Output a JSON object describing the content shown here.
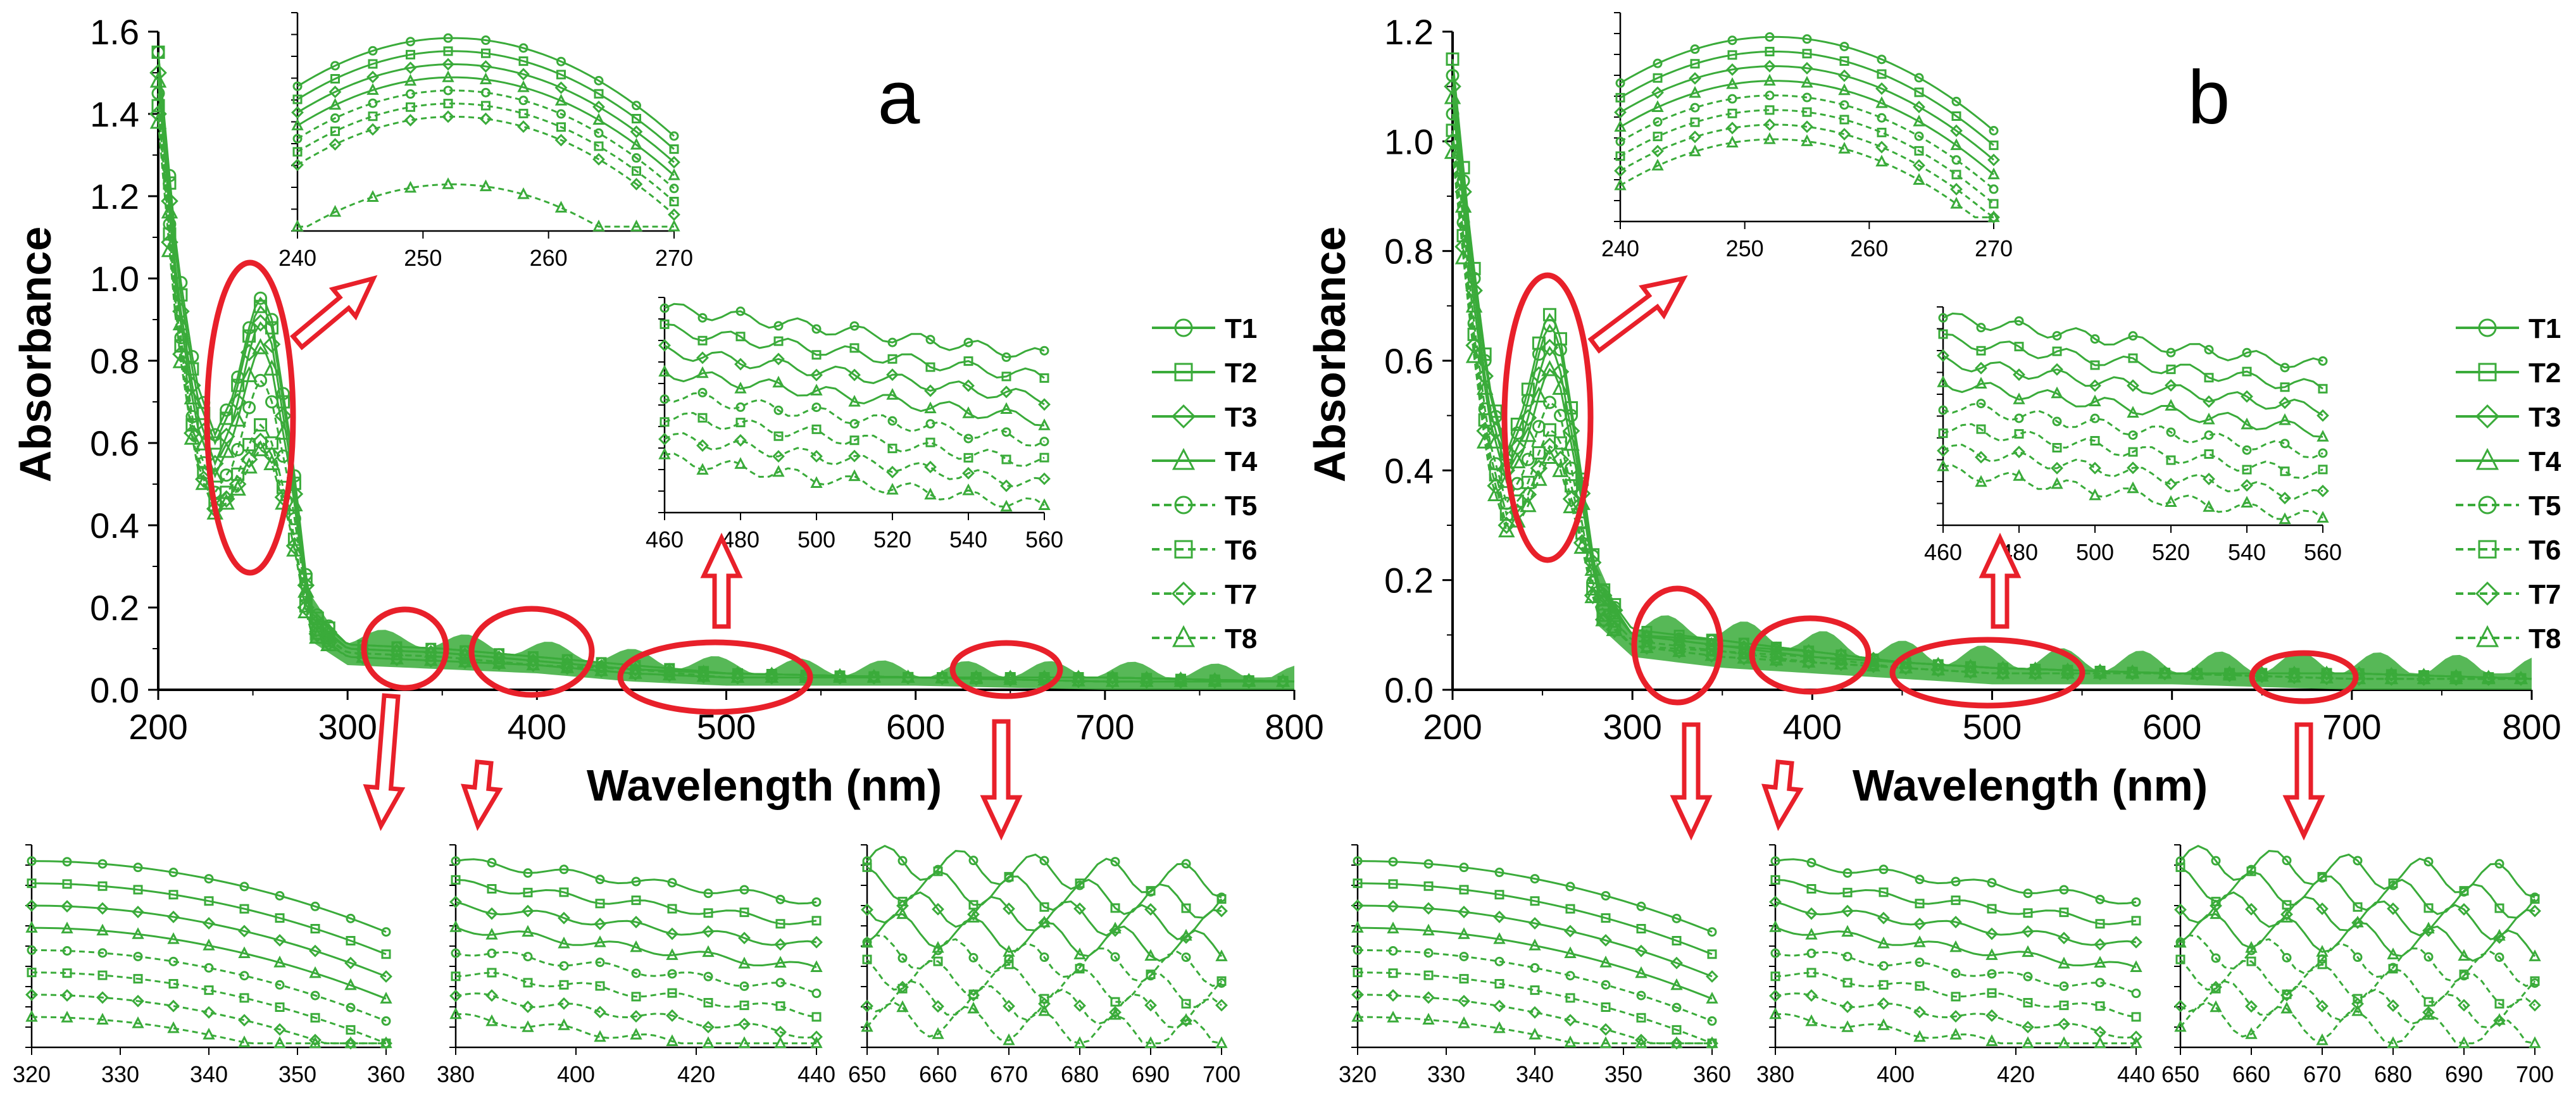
{
  "colors": {
    "series": "#3aab3a",
    "highlight": "#e8202a",
    "axis": "#000000"
  },
  "panels": [
    {
      "label": "a",
      "xlabel": "Wavelength (nm)",
      "ylabel": "Absorbance",
      "xticks": [
        "200",
        "300",
        "400",
        "500",
        "600",
        "700",
        "800"
      ],
      "yticks": [
        "0.0",
        "0.2",
        "0.4",
        "0.6",
        "0.8",
        "1.0",
        "1.2",
        "1.4",
        "1.6"
      ],
      "insets": {
        "uv": {
          "xticks": [
            "240",
            "250",
            "260",
            "270"
          ]
        },
        "vis": {
          "xticks": [
            "460",
            "480",
            "500",
            "520",
            "540",
            "560"
          ]
        },
        "b1": {
          "xticks": [
            "320",
            "330",
            "340",
            "350",
            "360"
          ]
        },
        "b2": {
          "xticks": [
            "380",
            "400",
            "420",
            "440"
          ]
        },
        "b3": {
          "xticks": [
            "650",
            "660",
            "670",
            "680",
            "690",
            "700"
          ]
        }
      }
    },
    {
      "label": "b",
      "xlabel": "Wavelength (nm)",
      "ylabel": "Absorbance",
      "xticks": [
        "200",
        "300",
        "400",
        "500",
        "600",
        "700",
        "800"
      ],
      "yticks": [
        "0.0",
        "0.2",
        "0.4",
        "0.6",
        "0.8",
        "1.0",
        "1.2"
      ],
      "insets": {
        "uv": {
          "xticks": [
            "240",
            "250",
            "260",
            "270"
          ]
        },
        "vis": {
          "xticks": [
            "460",
            "480",
            "500",
            "520",
            "540",
            "560"
          ]
        },
        "b1": {
          "xticks": [
            "320",
            "330",
            "340",
            "350",
            "360"
          ]
        },
        "b2": {
          "xticks": [
            "380",
            "400",
            "420",
            "440"
          ]
        },
        "b3": {
          "xticks": [
            "650",
            "660",
            "670",
            "680",
            "690",
            "700"
          ]
        }
      }
    }
  ],
  "legend": [
    "T1",
    "T2",
    "T3",
    "T4",
    "T5",
    "T6",
    "T7",
    "T8"
  ],
  "chart_data": [
    {
      "type": "line",
      "title": "a",
      "xlabel": "Wavelength (nm)",
      "ylabel": "Absorbance",
      "xlim": [
        200,
        800
      ],
      "ylim": [
        0,
        1.6
      ],
      "x": [
        200,
        210,
        220,
        230,
        240,
        250,
        255,
        260,
        270,
        280,
        300,
        350,
        400,
        450,
        500,
        600,
        700,
        800
      ],
      "series": [
        {
          "name": "T1",
          "style": "solid",
          "marker": "circle",
          "values": [
            1.55,
            1.05,
            0.75,
            0.62,
            0.72,
            0.92,
            0.96,
            0.9,
            0.6,
            0.2,
            0.11,
            0.1,
            0.08,
            0.06,
            0.04,
            0.03,
            0.03,
            0.02
          ]
        },
        {
          "name": "T2",
          "style": "solid",
          "marker": "square",
          "values": [
            1.55,
            1.02,
            0.72,
            0.6,
            0.7,
            0.9,
            0.94,
            0.88,
            0.58,
            0.19,
            0.11,
            0.1,
            0.08,
            0.06,
            0.04,
            0.03,
            0.03,
            0.02
          ]
        },
        {
          "name": "T3",
          "style": "solid",
          "marker": "diamond",
          "values": [
            1.5,
            0.98,
            0.68,
            0.55,
            0.66,
            0.86,
            0.9,
            0.84,
            0.55,
            0.18,
            0.1,
            0.09,
            0.07,
            0.05,
            0.04,
            0.03,
            0.03,
            0.02
          ]
        },
        {
          "name": "T4",
          "style": "solid",
          "marker": "triangle",
          "values": [
            1.48,
            0.95,
            0.65,
            0.52,
            0.62,
            0.8,
            0.84,
            0.78,
            0.52,
            0.17,
            0.1,
            0.09,
            0.07,
            0.05,
            0.04,
            0.03,
            0.03,
            0.02
          ]
        },
        {
          "name": "T5",
          "style": "dashed",
          "marker": "circle",
          "values": [
            1.45,
            0.92,
            0.6,
            0.48,
            0.55,
            0.72,
            0.76,
            0.7,
            0.48,
            0.16,
            0.09,
            0.08,
            0.06,
            0.05,
            0.03,
            0.03,
            0.02,
            0.02
          ]
        },
        {
          "name": "T6",
          "style": "dashed",
          "marker": "square",
          "values": [
            1.42,
            0.9,
            0.58,
            0.45,
            0.5,
            0.62,
            0.65,
            0.6,
            0.42,
            0.15,
            0.09,
            0.08,
            0.06,
            0.04,
            0.03,
            0.03,
            0.02,
            0.02
          ]
        },
        {
          "name": "T7",
          "style": "dashed",
          "marker": "diamond",
          "values": [
            1.4,
            0.88,
            0.56,
            0.44,
            0.48,
            0.58,
            0.61,
            0.57,
            0.4,
            0.15,
            0.08,
            0.07,
            0.06,
            0.04,
            0.03,
            0.03,
            0.02,
            0.02
          ]
        },
        {
          "name": "T8",
          "style": "dashed",
          "marker": "triangle",
          "values": [
            1.38,
            0.86,
            0.55,
            0.43,
            0.47,
            0.56,
            0.59,
            0.55,
            0.39,
            0.14,
            0.08,
            0.07,
            0.06,
            0.04,
            0.03,
            0.03,
            0.02,
            0.02
          ]
        }
      ],
      "annotations": [
        "zoom insets: 240–270 nm, 460–560 nm, 320–360 nm, 380–450 nm, 650–700 nm"
      ]
    },
    {
      "type": "line",
      "title": "b",
      "xlabel": "Wavelength (nm)",
      "ylabel": "Absorbance",
      "xlim": [
        200,
        800
      ],
      "ylim": [
        0,
        1.2
      ],
      "x": [
        200,
        210,
        220,
        230,
        240,
        250,
        255,
        260,
        270,
        280,
        300,
        350,
        400,
        450,
        500,
        600,
        700,
        800
      ],
      "series": [
        {
          "name": "T1",
          "style": "solid",
          "marker": "circle",
          "values": [
            1.12,
            0.8,
            0.55,
            0.42,
            0.5,
            0.64,
            0.67,
            0.62,
            0.42,
            0.2,
            0.1,
            0.09,
            0.07,
            0.05,
            0.04,
            0.03,
            0.03,
            0.02
          ]
        },
        {
          "name": "T2",
          "style": "solid",
          "marker": "square",
          "values": [
            1.15,
            0.82,
            0.56,
            0.43,
            0.52,
            0.66,
            0.69,
            0.64,
            0.43,
            0.2,
            0.11,
            0.09,
            0.07,
            0.05,
            0.04,
            0.03,
            0.03,
            0.02
          ]
        },
        {
          "name": "T3",
          "style": "solid",
          "marker": "diamond",
          "values": [
            1.1,
            0.78,
            0.52,
            0.4,
            0.47,
            0.6,
            0.63,
            0.58,
            0.4,
            0.19,
            0.1,
            0.08,
            0.07,
            0.05,
            0.04,
            0.03,
            0.03,
            0.02
          ]
        },
        {
          "name": "T4",
          "style": "solid",
          "marker": "triangle",
          "values": [
            1.08,
            0.75,
            0.5,
            0.38,
            0.44,
            0.56,
            0.59,
            0.55,
            0.38,
            0.18,
            0.1,
            0.08,
            0.06,
            0.05,
            0.04,
            0.03,
            0.03,
            0.02
          ]
        },
        {
          "name": "T5",
          "style": "dashed",
          "marker": "circle",
          "values": [
            1.05,
            0.72,
            0.46,
            0.34,
            0.4,
            0.5,
            0.53,
            0.5,
            0.34,
            0.16,
            0.09,
            0.07,
            0.06,
            0.04,
            0.03,
            0.03,
            0.02,
            0.02
          ]
        },
        {
          "name": "T6",
          "style": "dashed",
          "marker": "square",
          "values": [
            1.02,
            0.7,
            0.44,
            0.32,
            0.36,
            0.45,
            0.48,
            0.45,
            0.32,
            0.15,
            0.08,
            0.07,
            0.05,
            0.04,
            0.03,
            0.03,
            0.02,
            0.02
          ]
        },
        {
          "name": "T7",
          "style": "dashed",
          "marker": "diamond",
          "values": [
            1.0,
            0.68,
            0.42,
            0.3,
            0.34,
            0.42,
            0.45,
            0.42,
            0.3,
            0.14,
            0.08,
            0.06,
            0.05,
            0.04,
            0.03,
            0.03,
            0.02,
            0.02
          ]
        },
        {
          "name": "T8",
          "style": "dashed",
          "marker": "triangle",
          "values": [
            0.98,
            0.66,
            0.4,
            0.29,
            0.32,
            0.4,
            0.43,
            0.4,
            0.29,
            0.14,
            0.08,
            0.06,
            0.05,
            0.04,
            0.03,
            0.03,
            0.02,
            0.02
          ]
        }
      ],
      "annotations": [
        "zoom insets: 240–270 nm, 460–560 nm, 320–360 nm, 380–450 nm, 650–700 nm"
      ]
    }
  ]
}
